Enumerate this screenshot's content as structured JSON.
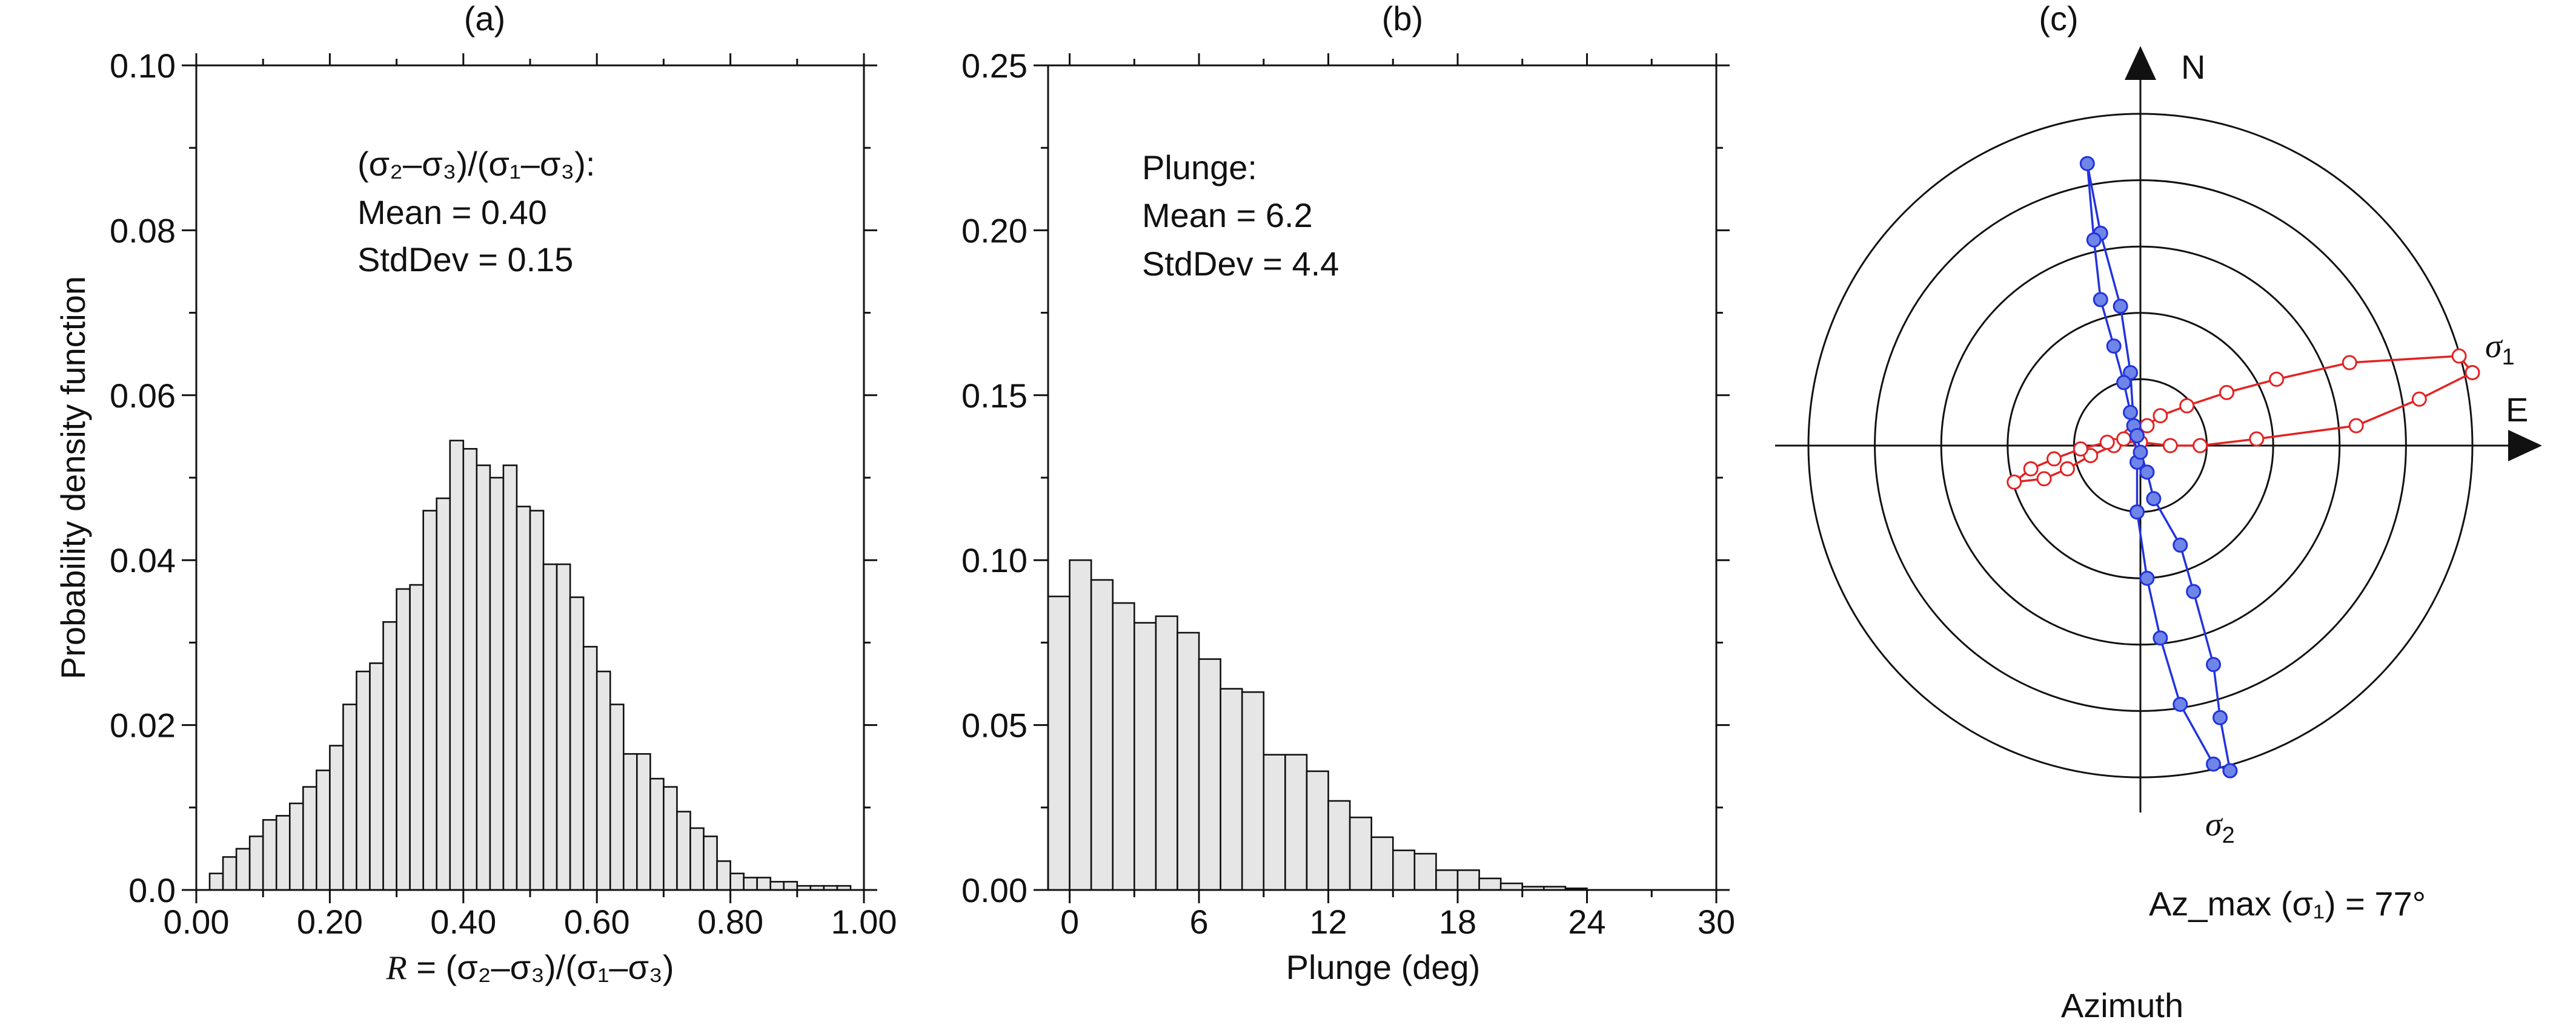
{
  "chart_data": [
    {
      "type": "bar",
      "panel_label": "(a)",
      "xlabel_parts": {
        "var": "R",
        "formula": " = (σ₂–σ₃)/(σ₁–σ₃)"
      },
      "ylabel": "Probability density function",
      "xlim": [
        0,
        1.0
      ],
      "ylim": [
        0,
        0.1
      ],
      "xticks": [
        "0.00",
        "0.20",
        "0.40",
        "0.60",
        "0.80",
        "1.00"
      ],
      "yticks": [
        "0.0",
        "0.02",
        "0.04",
        "0.06",
        "0.08",
        "0.10"
      ],
      "annotation": [
        "(σ₂–σ₃)/(σ₁–σ₃):",
        "Mean = 0.40",
        "StdDev = 0.15"
      ],
      "bin_start": 0.0,
      "bin_width": 0.02,
      "values": [
        0.0,
        0.002,
        0.004,
        0.005,
        0.0065,
        0.0085,
        0.009,
        0.0105,
        0.0125,
        0.0145,
        0.0175,
        0.0225,
        0.0265,
        0.0275,
        0.0325,
        0.0365,
        0.037,
        0.046,
        0.0475,
        0.0545,
        0.0535,
        0.0515,
        0.05,
        0.0515,
        0.0465,
        0.046,
        0.0395,
        0.0395,
        0.0355,
        0.0295,
        0.0265,
        0.0225,
        0.0165,
        0.0165,
        0.0135,
        0.0125,
        0.0095,
        0.0075,
        0.0065,
        0.0035,
        0.002,
        0.0015,
        0.0015,
        0.001,
        0.001,
        0.0005,
        0.0005,
        0.0005,
        0.0005,
        0.0
      ]
    },
    {
      "type": "bar",
      "panel_label": "(b)",
      "xlabel": "Plunge (deg)",
      "xlim": [
        -1,
        30
      ],
      "ylim": [
        0,
        0.25
      ],
      "xticks": [
        "0",
        "6",
        "12",
        "18",
        "24",
        "30"
      ],
      "yticks": [
        "0.00",
        "0.05",
        "0.10",
        "0.15",
        "0.20",
        "0.25"
      ],
      "annotation": [
        "Plunge:",
        "Mean = 6.2",
        "StdDev = 4.4"
      ],
      "bin_start": -1,
      "bin_width": 1,
      "values": [
        0.089,
        0.1,
        0.094,
        0.087,
        0.081,
        0.083,
        0.078,
        0.07,
        0.061,
        0.06,
        0.041,
        0.041,
        0.036,
        0.027,
        0.022,
        0.016,
        0.012,
        0.011,
        0.006,
        0.006,
        0.0035,
        0.002,
        0.001,
        0.001,
        0.0005,
        0.0,
        0.0,
        0.0,
        0.0,
        0.0,
        0.0
      ]
    },
    {
      "type": "scatter",
      "panel_label": "(c)",
      "north_label": "N",
      "east_label": "E",
      "sigma1_label": {
        "sym": "σ",
        "sub": "1"
      },
      "sigma2_label": {
        "sym": "σ",
        "sub": "2"
      },
      "azimuth_text": "Az_max (σ₁) = 77°",
      "xlabel": "Azimuth",
      "ring_radii": [
        0.2,
        0.4,
        0.6,
        0.8,
        1.0
      ],
      "series": [
        {
          "color": "#e32222",
          "marker": "open-circle",
          "points": [
            [
              1.0,
              0.22
            ],
            [
              0.96,
              0.27
            ],
            [
              0.63,
              0.25
            ],
            [
              0.41,
              0.2
            ],
            [
              0.26,
              0.16
            ],
            [
              0.14,
              0.12
            ],
            [
              0.06,
              0.09
            ],
            [
              0.02,
              0.06
            ],
            [
              -0.03,
              0.03
            ],
            [
              -0.08,
              -0.0
            ],
            [
              -0.15,
              -0.03
            ],
            [
              -0.22,
              -0.07
            ],
            [
              -0.29,
              -0.1
            ],
            [
              -0.38,
              -0.11
            ],
            [
              -0.33,
              -0.07
            ],
            [
              -0.26,
              -0.04
            ],
            [
              -0.18,
              -0.01
            ],
            [
              -0.1,
              0.01
            ],
            [
              -0.05,
              0.02
            ],
            [
              0.0,
              0.01
            ],
            [
              0.09,
              0.0
            ],
            [
              0.18,
              0.0
            ],
            [
              0.35,
              0.02
            ],
            [
              0.65,
              0.06
            ],
            [
              0.84,
              0.14
            ],
            [
              1.0,
              0.22
            ]
          ]
        },
        {
          "color": "#2233dd",
          "marker": "filled-circle",
          "points": [
            [
              0.27,
              -0.98
            ],
            [
              0.22,
              -0.96
            ],
            [
              0.12,
              -0.78
            ],
            [
              0.06,
              -0.58
            ],
            [
              0.02,
              -0.4
            ],
            [
              -0.01,
              -0.2
            ],
            [
              -0.01,
              -0.05
            ],
            [
              -0.02,
              0.06
            ],
            [
              -0.03,
              0.22
            ],
            [
              -0.06,
              0.42
            ],
            [
              -0.12,
              0.64
            ],
            [
              -0.16,
              0.85
            ],
            [
              -0.14,
              0.62
            ],
            [
              -0.12,
              0.44
            ],
            [
              -0.08,
              0.3
            ],
            [
              -0.05,
              0.19
            ],
            [
              -0.03,
              0.1
            ],
            [
              -0.01,
              0.03
            ],
            [
              0.0,
              -0.02
            ],
            [
              0.02,
              -0.08
            ],
            [
              0.04,
              -0.16
            ],
            [
              0.12,
              -0.3
            ],
            [
              0.16,
              -0.44
            ],
            [
              0.22,
              -0.66
            ],
            [
              0.24,
              -0.82
            ],
            [
              0.27,
              -0.98
            ]
          ]
        }
      ]
    }
  ]
}
